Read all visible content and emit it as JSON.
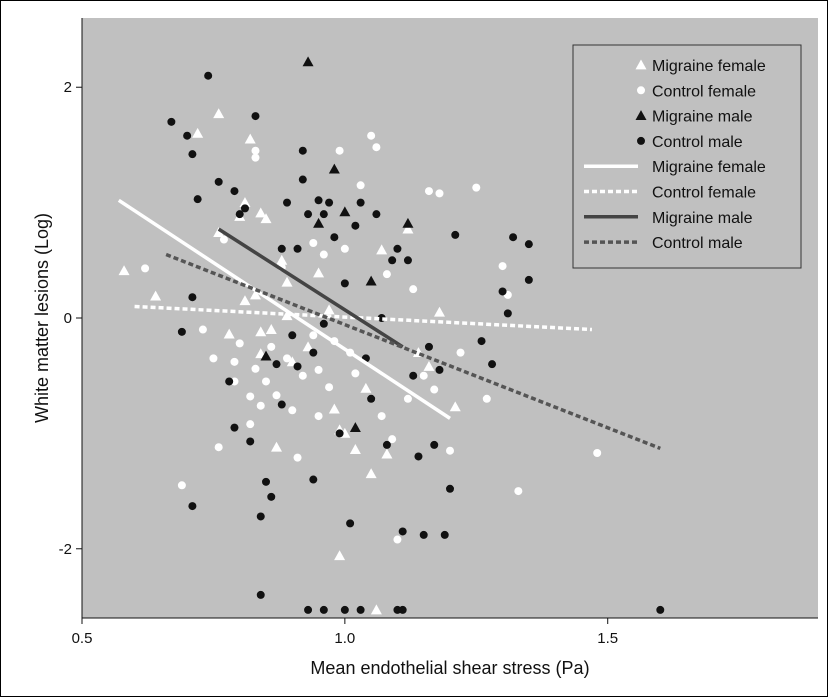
{
  "chart_data": {
    "type": "scatter",
    "title": "",
    "xlabel": "Mean endothelial shear stress (Pa)",
    "ylabel": "White matter lesions (Log)",
    "xlim": [
      0.5,
      1.9
    ],
    "ylim": [
      -2.6,
      2.6
    ],
    "xticks": [
      "0.5",
      "1.0",
      "1.5"
    ],
    "xtick_values": [
      0.5,
      1.0,
      1.5
    ],
    "yticks": [
      "2",
      "0",
      "-2"
    ],
    "ytick_values": [
      2,
      0,
      -2
    ],
    "background": "#c0c0c0",
    "grid": false,
    "legend_position": "top-right",
    "series": [
      {
        "name": "Migraine female",
        "marker": "triangle",
        "color": "#ffffff",
        "points": [
          [
            0.58,
            0.41
          ],
          [
            0.64,
            0.19
          ],
          [
            0.72,
            1.6
          ],
          [
            0.76,
            1.77
          ],
          [
            0.76,
            0.74
          ],
          [
            0.78,
            -0.14
          ],
          [
            0.8,
            0.88
          ],
          [
            0.81,
            1.0
          ],
          [
            0.81,
            0.15
          ],
          [
            0.82,
            1.55
          ],
          [
            0.83,
            0.2
          ],
          [
            0.84,
            0.91
          ],
          [
            0.84,
            -0.12
          ],
          [
            0.84,
            -0.31
          ],
          [
            0.85,
            0.86
          ],
          [
            0.86,
            -0.1
          ],
          [
            0.87,
            -1.12
          ],
          [
            0.88,
            0.5
          ],
          [
            0.89,
            0.02
          ],
          [
            0.89,
            0.31
          ],
          [
            0.9,
            -0.38
          ],
          [
            0.93,
            -0.25
          ],
          [
            0.95,
            0.39
          ],
          [
            0.97,
            0.07
          ],
          [
            0.98,
            -0.79
          ],
          [
            0.99,
            -0.97
          ],
          [
            0.99,
            -2.06
          ],
          [
            1.0,
            -1.0
          ],
          [
            1.02,
            -1.14
          ],
          [
            1.04,
            -0.61
          ],
          [
            1.05,
            -1.35
          ],
          [
            1.06,
            -2.53
          ],
          [
            1.07,
            0.59
          ],
          [
            1.08,
            -1.18
          ],
          [
            1.12,
            0.77
          ],
          [
            1.14,
            -0.3
          ],
          [
            1.16,
            -0.42
          ],
          [
            1.18,
            0.05
          ],
          [
            1.21,
            -0.77
          ]
        ]
      },
      {
        "name": "Control female",
        "marker": "circle",
        "color": "#ffffff",
        "points": [
          [
            0.62,
            0.43
          ],
          [
            0.69,
            -1.45
          ],
          [
            0.73,
            -0.1
          ],
          [
            0.75,
            -0.35
          ],
          [
            0.76,
            -1.12
          ],
          [
            0.77,
            0.68
          ],
          [
            0.79,
            -0.38
          ],
          [
            0.79,
            -0.55
          ],
          [
            0.8,
            -0.22
          ],
          [
            0.82,
            -0.68
          ],
          [
            0.82,
            -0.92
          ],
          [
            0.83,
            1.39
          ],
          [
            0.83,
            1.45
          ],
          [
            0.83,
            -0.44
          ],
          [
            0.84,
            -0.76
          ],
          [
            0.85,
            -0.55
          ],
          [
            0.86,
            -0.25
          ],
          [
            0.87,
            -0.67
          ],
          [
            0.88,
            0.44
          ],
          [
            0.89,
            -0.35
          ],
          [
            0.9,
            -0.8
          ],
          [
            0.91,
            -1.21
          ],
          [
            0.92,
            -0.5
          ],
          [
            0.94,
            0.65
          ],
          [
            0.94,
            -0.15
          ],
          [
            0.95,
            -0.45
          ],
          [
            0.95,
            -0.85
          ],
          [
            0.96,
            0.55
          ],
          [
            0.97,
            -0.6
          ],
          [
            0.98,
            -0.2
          ],
          [
            0.99,
            1.45
          ],
          [
            1.0,
            0.6
          ],
          [
            1.01,
            -0.3
          ],
          [
            1.02,
            -0.48
          ],
          [
            1.03,
            1.15
          ],
          [
            1.05,
            1.58
          ],
          [
            1.06,
            1.48
          ],
          [
            1.07,
            -0.85
          ],
          [
            1.08,
            0.38
          ],
          [
            1.09,
            -1.05
          ],
          [
            1.1,
            -1.92
          ],
          [
            1.12,
            -0.7
          ],
          [
            1.13,
            0.25
          ],
          [
            1.15,
            -0.5
          ],
          [
            1.16,
            1.1
          ],
          [
            1.17,
            -0.62
          ],
          [
            1.18,
            1.08
          ],
          [
            1.2,
            -1.15
          ],
          [
            1.22,
            -0.3
          ],
          [
            1.25,
            1.13
          ],
          [
            1.27,
            -0.7
          ],
          [
            1.3,
            0.45
          ],
          [
            1.31,
            0.2
          ],
          [
            1.33,
            -1.5
          ],
          [
            1.48,
            -1.17
          ]
        ]
      },
      {
        "name": "Migraine male",
        "marker": "triangle",
        "color": "#111111",
        "points": [
          [
            0.85,
            -0.33
          ],
          [
            0.93,
            2.22
          ],
          [
            0.95,
            0.82
          ],
          [
            0.98,
            1.29
          ],
          [
            1.0,
            0.92
          ],
          [
            1.02,
            -0.95
          ],
          [
            1.05,
            0.32
          ],
          [
            1.12,
            0.82
          ]
        ]
      },
      {
        "name": "Control male",
        "marker": "circle",
        "color": "#111111",
        "points": [
          [
            0.67,
            1.7
          ],
          [
            0.69,
            -0.12
          ],
          [
            0.7,
            1.58
          ],
          [
            0.71,
            1.42
          ],
          [
            0.71,
            0.18
          ],
          [
            0.71,
            -1.63
          ],
          [
            0.72,
            1.03
          ],
          [
            0.74,
            2.1
          ],
          [
            0.76,
            1.18
          ],
          [
            0.78,
            -0.55
          ],
          [
            0.79,
            1.1
          ],
          [
            0.79,
            -0.95
          ],
          [
            0.8,
            0.9
          ],
          [
            0.81,
            0.95
          ],
          [
            0.82,
            -1.07
          ],
          [
            0.83,
            1.75
          ],
          [
            0.84,
            -1.72
          ],
          [
            0.85,
            -1.42
          ],
          [
            0.86,
            -1.55
          ],
          [
            0.87,
            -0.4
          ],
          [
            0.88,
            0.6
          ],
          [
            0.88,
            -0.75
          ],
          [
            0.89,
            1.0
          ],
          [
            0.9,
            -0.15
          ],
          [
            0.91,
            0.6
          ],
          [
            0.91,
            -0.42
          ],
          [
            0.92,
            1.45
          ],
          [
            0.92,
            1.2
          ],
          [
            0.93,
            0.9
          ],
          [
            0.94,
            -0.3
          ],
          [
            0.94,
            -1.4
          ],
          [
            0.95,
            1.02
          ],
          [
            0.96,
            0.9
          ],
          [
            0.96,
            -0.05
          ],
          [
            0.97,
            1.0
          ],
          [
            0.98,
            0.7
          ],
          [
            0.99,
            -1.0
          ],
          [
            1.0,
            0.3
          ],
          [
            1.01,
            -1.78
          ],
          [
            1.02,
            0.8
          ],
          [
            1.03,
            1.0
          ],
          [
            1.04,
            -0.35
          ],
          [
            1.05,
            -0.7
          ],
          [
            1.06,
            0.9
          ],
          [
            1.07,
            0.0
          ],
          [
            1.08,
            -1.1
          ],
          [
            1.09,
            0.5
          ],
          [
            1.1,
            0.6
          ],
          [
            1.11,
            -1.85
          ],
          [
            1.12,
            0.5
          ],
          [
            1.13,
            -0.5
          ],
          [
            1.14,
            -1.2
          ],
          [
            1.15,
            -1.88
          ],
          [
            1.16,
            -0.25
          ],
          [
            1.17,
            -1.1
          ],
          [
            1.18,
            -0.45
          ],
          [
            1.19,
            -1.88
          ],
          [
            1.2,
            -1.48
          ],
          [
            1.21,
            0.72
          ],
          [
            1.26,
            -0.2
          ],
          [
            1.28,
            -0.4
          ],
          [
            1.3,
            0.23
          ],
          [
            1.31,
            0.04
          ],
          [
            1.32,
            0.7
          ],
          [
            1.35,
            0.64
          ],
          [
            1.35,
            0.33
          ],
          [
            0.84,
            -2.4
          ],
          [
            0.93,
            -2.53
          ],
          [
            0.96,
            -2.53
          ],
          [
            1.0,
            -2.53
          ],
          [
            1.03,
            -2.53
          ],
          [
            1.1,
            -2.53
          ],
          [
            1.11,
            -2.53
          ],
          [
            1.6,
            -2.53
          ]
        ]
      }
    ],
    "fit_lines": [
      {
        "name": "Migraine female",
        "color": "#ffffff",
        "style": "solid",
        "from": [
          0.57,
          1.02
        ],
        "to": [
          1.2,
          -0.87
        ]
      },
      {
        "name": "Control female",
        "color": "#ffffff",
        "style": "dotted",
        "from": [
          0.6,
          0.1
        ],
        "to": [
          1.47,
          -0.1
        ]
      },
      {
        "name": "Migraine male",
        "color": "#444444",
        "style": "solid",
        "from": [
          0.76,
          0.77
        ],
        "to": [
          1.11,
          -0.25
        ]
      },
      {
        "name": "Control male",
        "color": "#555555",
        "style": "dotted",
        "from": [
          0.66,
          0.55
        ],
        "to": [
          1.6,
          -1.13
        ]
      }
    ]
  }
}
